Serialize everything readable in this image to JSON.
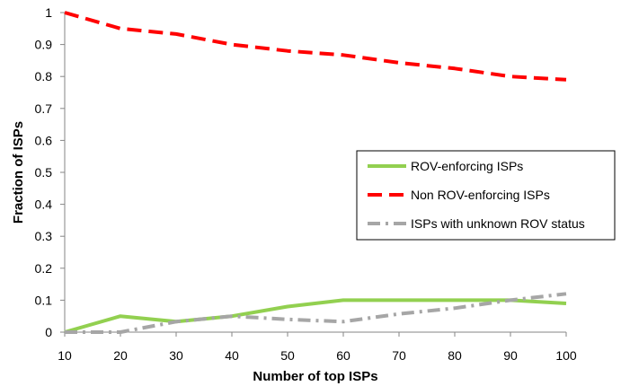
{
  "chart_data": {
    "type": "line",
    "title": "",
    "xlabel": "Number of top ISPs",
    "ylabel": "Fraction of ISPs",
    "x": [
      10,
      20,
      30,
      40,
      50,
      60,
      70,
      80,
      90,
      100
    ],
    "xlim": [
      10,
      100
    ],
    "ylim": [
      0,
      1
    ],
    "x_ticks": [
      "10",
      "20",
      "30",
      "40",
      "50",
      "60",
      "70",
      "80",
      "90",
      "100"
    ],
    "y_ticks": [
      "0",
      "0.1",
      "0.2",
      "0.3",
      "0.4",
      "0.5",
      "0.6",
      "0.7",
      "0.8",
      "0.9",
      "1"
    ],
    "grid": false,
    "legend_position": "right",
    "series": [
      {
        "name": "ROV-enforcing ISPs",
        "values": [
          0,
          0.05,
          0.033,
          0.05,
          0.08,
          0.1,
          0.1,
          0.1,
          0.1,
          0.09
        ],
        "color": "#92D050",
        "style": "solid"
      },
      {
        "name": "Non ROV-enforcing ISPs",
        "values": [
          1,
          0.95,
          0.933,
          0.9,
          0.88,
          0.867,
          0.843,
          0.825,
          0.8,
          0.79
        ],
        "color": "#FF0000",
        "style": "dashed"
      },
      {
        "name": "ISPs with unknown ROV status",
        "values": [
          0,
          0,
          0.033,
          0.05,
          0.04,
          0.033,
          0.057,
          0.075,
          0.1,
          0.12
        ],
        "color": "#A6A6A6",
        "style": "dash-dot"
      }
    ]
  }
}
